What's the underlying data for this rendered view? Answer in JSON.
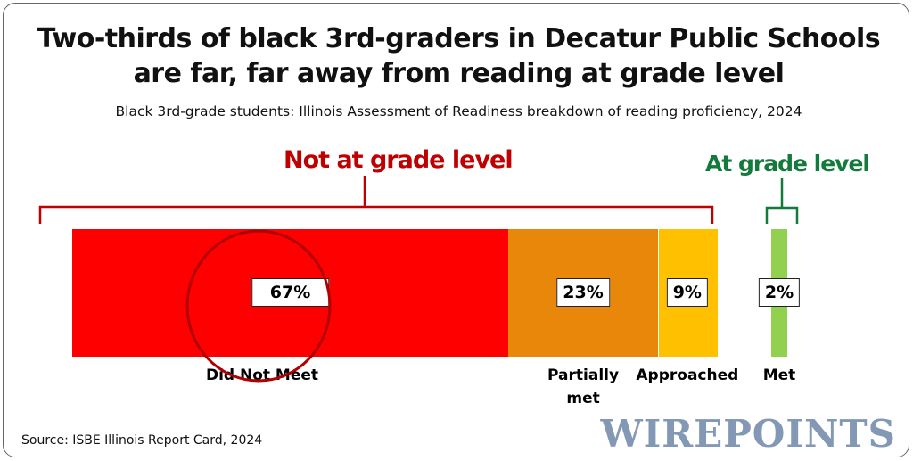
{
  "title_line1": "Two-thirds of black 3rd-graders in Decatur Public Schools",
  "title_line2": "are far, far away from reading at grade level",
  "subtitle": "Black 3rd-grade students: Illinois Assessment of Readiness breakdown of reading proficiency, 2024",
  "source": "Source: ISBE Illinois Report Card, 2024",
  "logo": "WIREPOINTS",
  "colors": {
    "not_at": "#c00000",
    "at": "#127a3a"
  },
  "chart_data": {
    "type": "bar",
    "orientation": "horizontal-stacked",
    "title": "Two-thirds of black 3rd-graders in Decatur Public Schools are far, far away from reading at grade level",
    "groups": [
      {
        "label": "Not at grade level",
        "categories": [
          "Did Not Meet",
          "Partially met",
          "Approached"
        ]
      },
      {
        "label": "At grade level",
        "categories": [
          "Met"
        ]
      }
    ],
    "categories": [
      "Did Not Meet",
      "Partially met",
      "Approached",
      "Met"
    ],
    "values": [
      67,
      23,
      9,
      2
    ],
    "value_labels": [
      "67%",
      "23%",
      "9%",
      "2%"
    ],
    "colors": [
      "#ff0000",
      "#e8870a",
      "#ffc000",
      "#92d050"
    ],
    "annotation": "circle around Did Not Meet"
  }
}
